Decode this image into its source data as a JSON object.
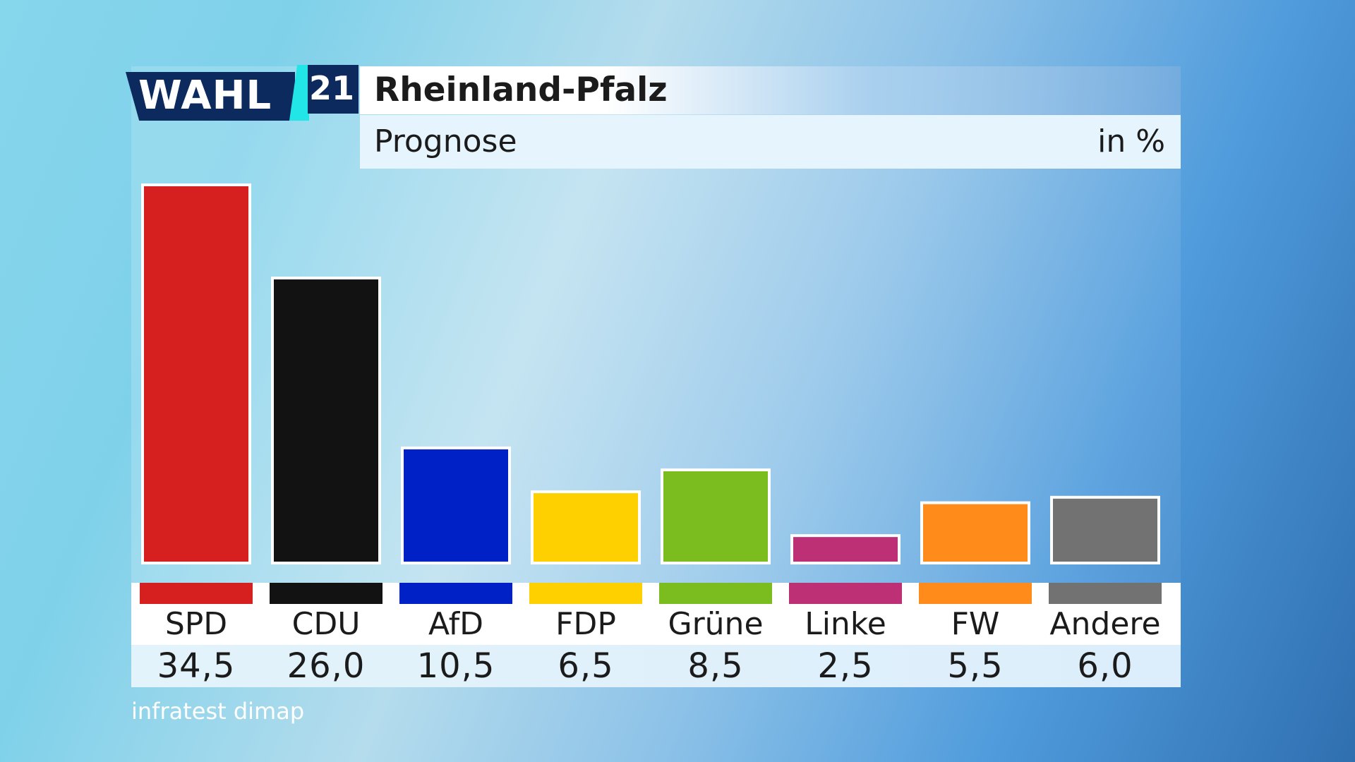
{
  "header": {
    "logo_word": "WAHL",
    "logo_year": "21",
    "title": "Rheinland-Pfalz",
    "subtitle": "Prognose",
    "unit": "in %"
  },
  "source": "infratest dimap",
  "colors": {
    "SPD": "#d62020",
    "CDU": "#121212",
    "AfD": "#0021c6",
    "FDP": "#ffd000",
    "Grüne": "#7bbd1f",
    "Linke": "#bd3075",
    "FW": "#ff8c1a",
    "Andere": "#727272"
  },
  "chart_data": {
    "type": "bar",
    "title": "Rheinland-Pfalz",
    "subtitle": "Prognose",
    "ylabel": "in %",
    "categories": [
      "SPD",
      "CDU",
      "AfD",
      "FDP",
      "Grüne",
      "Linke",
      "FW",
      "Andere"
    ],
    "values": [
      34.5,
      26.0,
      10.5,
      6.5,
      8.5,
      2.5,
      5.5,
      6.0
    ],
    "value_labels": [
      "34,5",
      "26,0",
      "10,5",
      "6,5",
      "8,5",
      "2,5",
      "5,5",
      "6,0"
    ],
    "ylim": [
      0,
      35
    ],
    "grid": false,
    "legend": "none"
  }
}
